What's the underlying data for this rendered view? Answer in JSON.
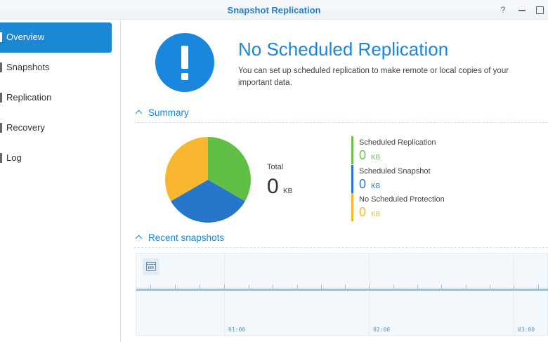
{
  "window": {
    "title": "Snapshot Replication",
    "help_glyph": "?"
  },
  "sidebar": {
    "items": [
      {
        "label": "Overview",
        "active": true
      },
      {
        "label": "Snapshots",
        "active": false
      },
      {
        "label": "Replication",
        "active": false
      },
      {
        "label": "Recovery",
        "active": false
      },
      {
        "label": "Log",
        "active": false
      }
    ]
  },
  "hero": {
    "icon": "exclamation-icon",
    "title": "No Scheduled Replication",
    "description": "You can set up scheduled replication to make remote or local copies of your important data."
  },
  "summary": {
    "heading": "Summary",
    "total_label": "Total",
    "total_value": "0",
    "total_unit": "KB",
    "legend": [
      {
        "name": "Scheduled Replication",
        "value": "0",
        "unit": "KB",
        "color": "#6cc04a"
      },
      {
        "name": "Scheduled Snapshot",
        "value": "0",
        "unit": "KB",
        "color": "#2677c9"
      },
      {
        "name": "No Scheduled Protection",
        "value": "0",
        "unit": "KB",
        "color": "#f6b52d"
      }
    ]
  },
  "recent_snapshots": {
    "heading": "Recent snapshots",
    "calendar_icon": "calendar-icon",
    "time_labels": [
      "01:00",
      "02:00",
      "03:00"
    ]
  },
  "colors": {
    "accent": "#1a86dc",
    "pie_green": "#62bf45",
    "pie_blue": "#2677c9",
    "pie_yellow": "#f8b62e"
  }
}
